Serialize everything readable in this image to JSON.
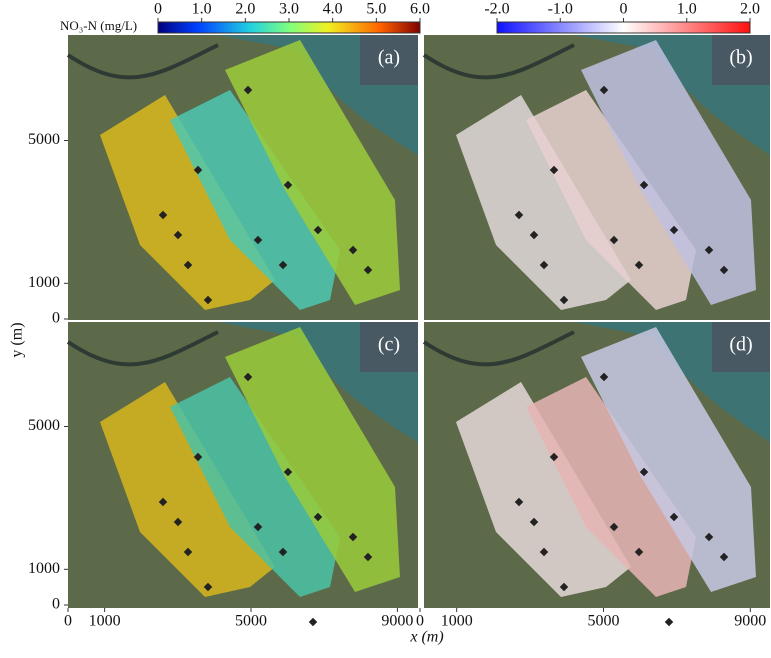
{
  "colorbars": [
    {
      "label": "NO₃-N (mg/L)",
      "range": [
        0,
        6
      ],
      "ticks": [
        0,
        {
          "value": 1,
          "label": "1.0"
        },
        {
          "value": 2,
          "label": "2.0"
        },
        {
          "value": 3,
          "label": "3.0"
        },
        {
          "value": 4,
          "label": "4.0"
        },
        {
          "value": 5,
          "label": "5.0"
        },
        {
          "value": 6,
          "label": "6.0"
        }
      ]
    },
    {
      "range": [
        -2,
        2
      ],
      "ticks": [
        {
          "value": -2,
          "label": "-2.0"
        },
        {
          "value": -1,
          "label": "-1.0"
        },
        0,
        {
          "value": 1,
          "label": "1.0"
        },
        {
          "value": 2,
          "label": "2.0"
        }
      ]
    }
  ],
  "panels": [
    "(a)",
    "(b)",
    "(c)",
    "(d)"
  ],
  "axes": {
    "xlabel": "x (m)",
    "ylabel": "y (m)",
    "xlim": [
      0,
      9000
    ],
    "xticks": [
      0,
      1000,
      5000,
      9000
    ],
    "yticks": [
      0,
      1000,
      5000
    ]
  }
}
